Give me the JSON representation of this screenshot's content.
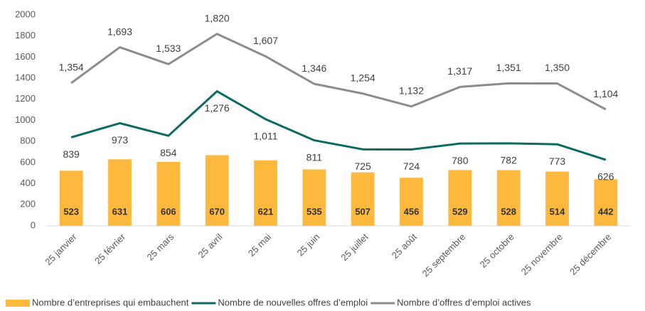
{
  "chart_data": {
    "type": "combo",
    "categories": [
      "25 janvier",
      "25 février",
      "25 mars",
      "25 avril",
      "25 mai",
      "25 juin",
      "25 juillet",
      "25 août",
      "25 septembre",
      "25 octobre",
      "25 novembre",
      "25 décembre"
    ],
    "series": [
      {
        "name": "Nombre d’entreprises qui embauchent",
        "type": "bar",
        "color": "#fdb93e",
        "values": [
          523,
          631,
          606,
          670,
          621,
          535,
          507,
          456,
          529,
          528,
          514,
          442
        ]
      },
      {
        "name": "Nombre de nouvelles offres d’emploi",
        "type": "line",
        "color": "#0b6b62",
        "values": [
          839,
          973,
          854,
          1276,
          1011,
          811,
          725,
          724,
          780,
          782,
          773,
          626
        ],
        "value_labels": [
          "839",
          "973",
          "854",
          "1,276",
          "1,011",
          "811",
          "725",
          "724",
          "780",
          "782",
          "773",
          "626"
        ]
      },
      {
        "name": "Nombre d’offres d’emploi actives",
        "type": "line",
        "color": "#8c8c8c",
        "values": [
          1354,
          1693,
          1533,
          1820,
          1607,
          1346,
          1254,
          1132,
          1317,
          1351,
          1350,
          1104
        ],
        "value_labels": [
          "1,354",
          "1,693",
          "1,533",
          "1,820",
          "1,607",
          "1,346",
          "1,254",
          "1,132",
          "1,317",
          "1,351",
          "1,350",
          "1,104"
        ]
      }
    ],
    "ylim": [
      0,
      2000
    ],
    "yticks": [
      0,
      200,
      400,
      600,
      800,
      1000,
      1200,
      1400,
      1600,
      1800,
      2000
    ],
    "grid": false,
    "legend": "bottom"
  }
}
